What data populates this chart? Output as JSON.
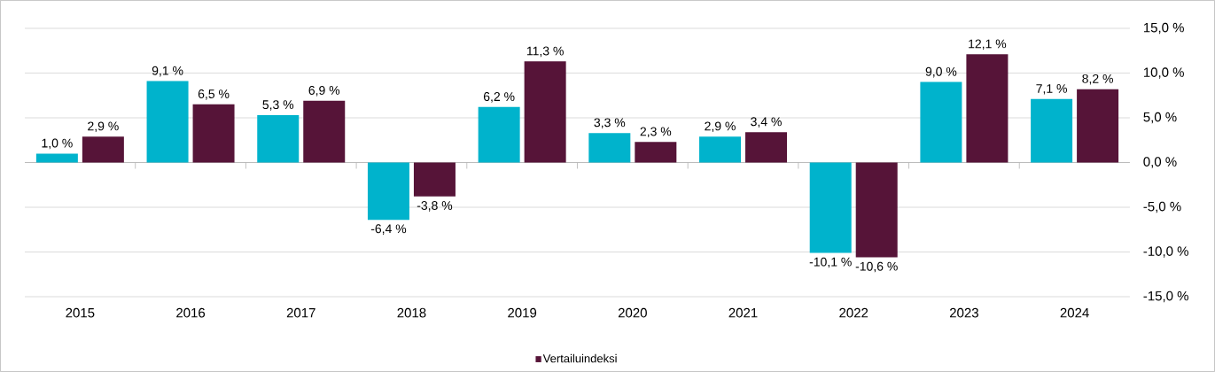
{
  "chart_data": {
    "type": "bar",
    "categories": [
      "2015",
      "2016",
      "2017",
      "2018",
      "2019",
      "2020",
      "2021",
      "2022",
      "2023",
      "2024"
    ],
    "series": [
      {
        "color": "#00b3cc",
        "values": [
          1.0,
          9.1,
          5.3,
          -6.4,
          6.2,
          3.3,
          2.9,
          -10.1,
          9.0,
          7.1
        ],
        "value_labels": [
          "1,0 %",
          "9,1 %",
          "5,3 %",
          "-6,4 %",
          "6,2 %",
          "3,3 %",
          "2,9 %",
          "-10,1 %",
          "9,0 %",
          "7,1 %"
        ]
      },
      {
        "name": "Vertailuindeksi",
        "color": "#561438",
        "values": [
          2.9,
          6.5,
          6.9,
          -3.8,
          11.3,
          2.3,
          3.4,
          -10.6,
          12.1,
          8.2
        ],
        "value_labels": [
          "2,9 %",
          "6,5 %",
          "6,9 %",
          "-3,8 %",
          "11,3 %",
          "2,3 %",
          "3,4 %",
          "-10,6 %",
          "12,1 %",
          "8,2 %"
        ]
      }
    ],
    "ylim": [
      -15,
      15
    ],
    "yticks": [
      {
        "value": 15,
        "label": "15,0 %"
      },
      {
        "value": 10,
        "label": "10,0 %"
      },
      {
        "value": 5,
        "label": "5,0 %"
      },
      {
        "value": 0,
        "label": "0,0 %"
      },
      {
        "value": -5,
        "label": "-5,0 %"
      },
      {
        "value": -10,
        "label": "-10,0 %"
      },
      {
        "value": -15,
        "label": "-15,0 %"
      }
    ],
    "grid": "y",
    "legend": "bottom"
  }
}
